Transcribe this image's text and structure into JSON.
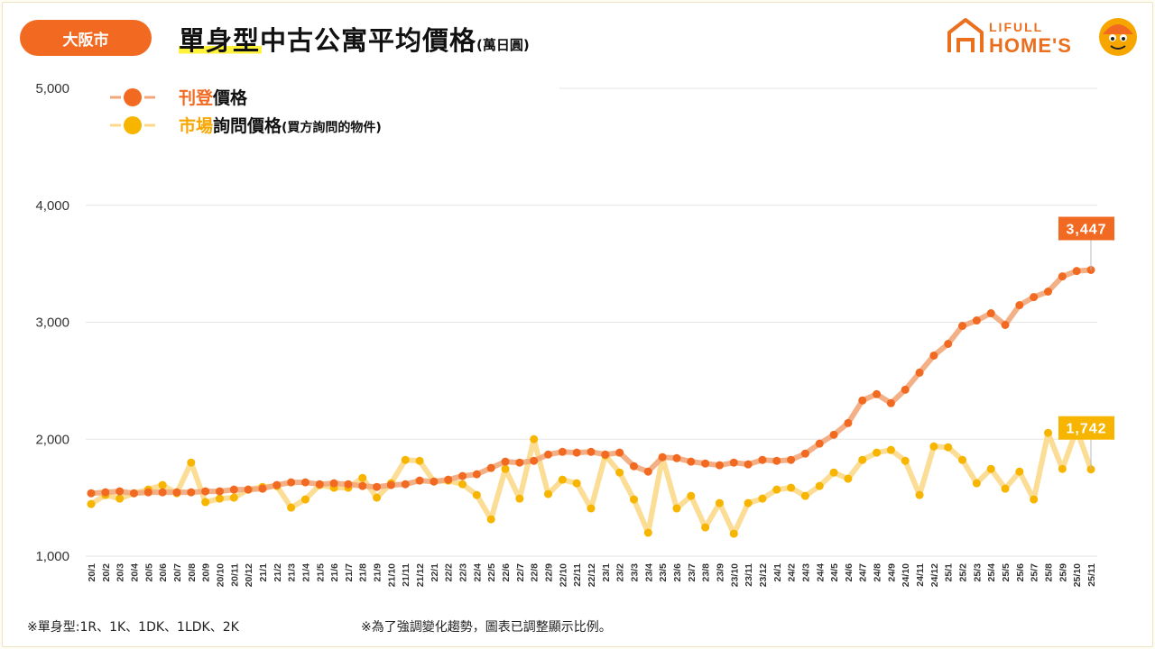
{
  "header": {
    "region": "大阪市",
    "title": "單身型中古公寓平均價格",
    "unit": "(萬日圓)"
  },
  "logo": {
    "line1": "LIFULL",
    "line2": "HOME'S"
  },
  "footer": {
    "note_left": "※單身型:1R、1K、1DK、1LDK、2K",
    "note_right": "※為了強調變化趨勢，圖表已調整顯示比例。"
  },
  "colors": {
    "listing_line": "#f26a21",
    "listing_line_fill": "#f2a77a",
    "inquiry_line": "#f7b500",
    "inquiry_line_fill": "#fbd98a",
    "badge": "#f26a21"
  },
  "chart_data": {
    "type": "line",
    "ylim": [
      1000,
      5000
    ],
    "yticks": [
      "1,000",
      "2,000",
      "3,000",
      "4,000",
      "5,000"
    ],
    "grid": true,
    "legend_position": "top-left",
    "legend": [
      {
        "accent": "刊登",
        "rest": "價格",
        "note": ""
      },
      {
        "accent": "市場",
        "rest": "詢問價格",
        "note": "(買方詢問的物件)"
      }
    ],
    "x": [
      "20/1",
      "20/2",
      "20/3",
      "20/4",
      "20/5",
      "20/6",
      "20/7",
      "20/8",
      "20/9",
      "20/10",
      "20/11",
      "20/12",
      "21/1",
      "21/2",
      "21/3",
      "21/4",
      "21/5",
      "21/6",
      "21/7",
      "21/8",
      "21/9",
      "21/10",
      "21/11",
      "21/12",
      "22/1",
      "22/2",
      "22/3",
      "22/4",
      "22/5",
      "22/6",
      "22/7",
      "22/8",
      "22/9",
      "22/10",
      "22/11",
      "22/12",
      "23/1",
      "23/2",
      "23/3",
      "23/4",
      "23/5",
      "23/6",
      "23/7",
      "23/8",
      "23/9",
      "23/10",
      "23/11",
      "23/12",
      "24/1",
      "24/2",
      "24/3",
      "24/4",
      "24/5",
      "24/6",
      "24/7",
      "24/8",
      "24/9",
      "24/10",
      "24/11",
      "24/12",
      "25/1",
      "25/2",
      "25/3",
      "25/4",
      "25/5",
      "25/6",
      "25/7",
      "25/8",
      "25/9",
      "25/10",
      "25/11"
    ],
    "series": [
      {
        "name": "刊登價格",
        "values": [
          1538,
          1546,
          1554,
          1538,
          1546,
          1546,
          1546,
          1546,
          1554,
          1554,
          1569,
          1569,
          1577,
          1608,
          1631,
          1631,
          1615,
          1623,
          1615,
          1600,
          1592,
          1608,
          1615,
          1646,
          1638,
          1654,
          1685,
          1700,
          1754,
          1808,
          1800,
          1815,
          1869,
          1892,
          1885,
          1892,
          1869,
          1885,
          1769,
          1723,
          1846,
          1838,
          1808,
          1792,
          1777,
          1800,
          1785,
          1823,
          1815,
          1823,
          1877,
          1962,
          2038,
          2138,
          2331,
          2385,
          2308,
          2423,
          2569,
          2715,
          2815,
          2969,
          3015,
          3077,
          2977,
          3146,
          3215,
          3262,
          3392,
          3438,
          3447
        ],
        "end_label": "3,447"
      },
      {
        "name": "市場詢問價格",
        "values": [
          1446,
          1523,
          1492,
          1538,
          1569,
          1608,
          1538,
          1800,
          1462,
          1492,
          1500,
          1569,
          1592,
          1600,
          1415,
          1485,
          1608,
          1585,
          1585,
          1669,
          1500,
          1623,
          1823,
          1815,
          1638,
          1646,
          1615,
          1523,
          1315,
          1746,
          1492,
          2000,
          1531,
          1654,
          1623,
          1408,
          1862,
          1715,
          1485,
          1200,
          1846,
          1408,
          1515,
          1246,
          1454,
          1192,
          1454,
          1492,
          1569,
          1585,
          1515,
          1600,
          1715,
          1662,
          1823,
          1885,
          1908,
          1815,
          1523,
          1938,
          1931,
          1823,
          1623,
          1746,
          1577,
          1723,
          1485,
          2054,
          1746,
          2085,
          1742
        ],
        "end_label": "1,742"
      }
    ]
  }
}
